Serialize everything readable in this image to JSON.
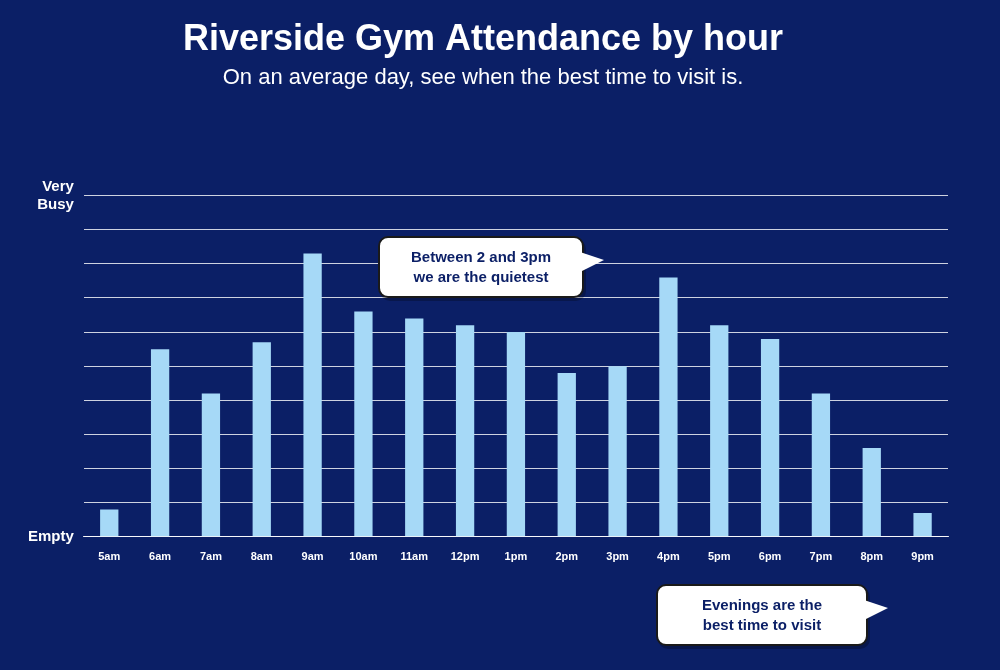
{
  "chart_data": {
    "type": "bar",
    "title": "Riverside Gym Attendance by hour",
    "subtitle": "On an average day, see when the best time to visit is.",
    "categories": [
      "5am",
      "6am",
      "7am",
      "8am",
      "9am",
      "10am",
      "11am",
      "12pm",
      "1pm",
      "2pm",
      "3pm",
      "4pm",
      "5pm",
      "6pm",
      "7pm",
      "8pm",
      "9pm"
    ],
    "values": [
      0.8,
      5.5,
      4.2,
      5.7,
      8.3,
      6.6,
      6.4,
      6.2,
      6.0,
      4.8,
      5.0,
      7.6,
      6.2,
      5.8,
      4.2,
      2.6,
      0.7
    ],
    "color": "#a6d9f7",
    "ylim": [
      0,
      10
    ],
    "yticks": [
      {
        "value": 0,
        "label": "Empty"
      },
      {
        "value": 1,
        "label": null
      },
      {
        "value": 2,
        "label": null
      },
      {
        "value": 3,
        "label": null
      },
      {
        "value": 4,
        "label": null
      },
      {
        "value": 5,
        "label": null
      },
      {
        "value": 6,
        "label": null
      },
      {
        "value": 7,
        "label": null
      },
      {
        "value": 8,
        "label": null
      },
      {
        "value": 9,
        "label": null
      },
      {
        "value": 10,
        "label": "Very Busy"
      }
    ],
    "grid": true,
    "annotations": [
      {
        "text": "Between 2 and 3pm\nwe are the quietest"
      },
      {
        "text": "Evenings are the\nbest time to visit"
      }
    ]
  }
}
